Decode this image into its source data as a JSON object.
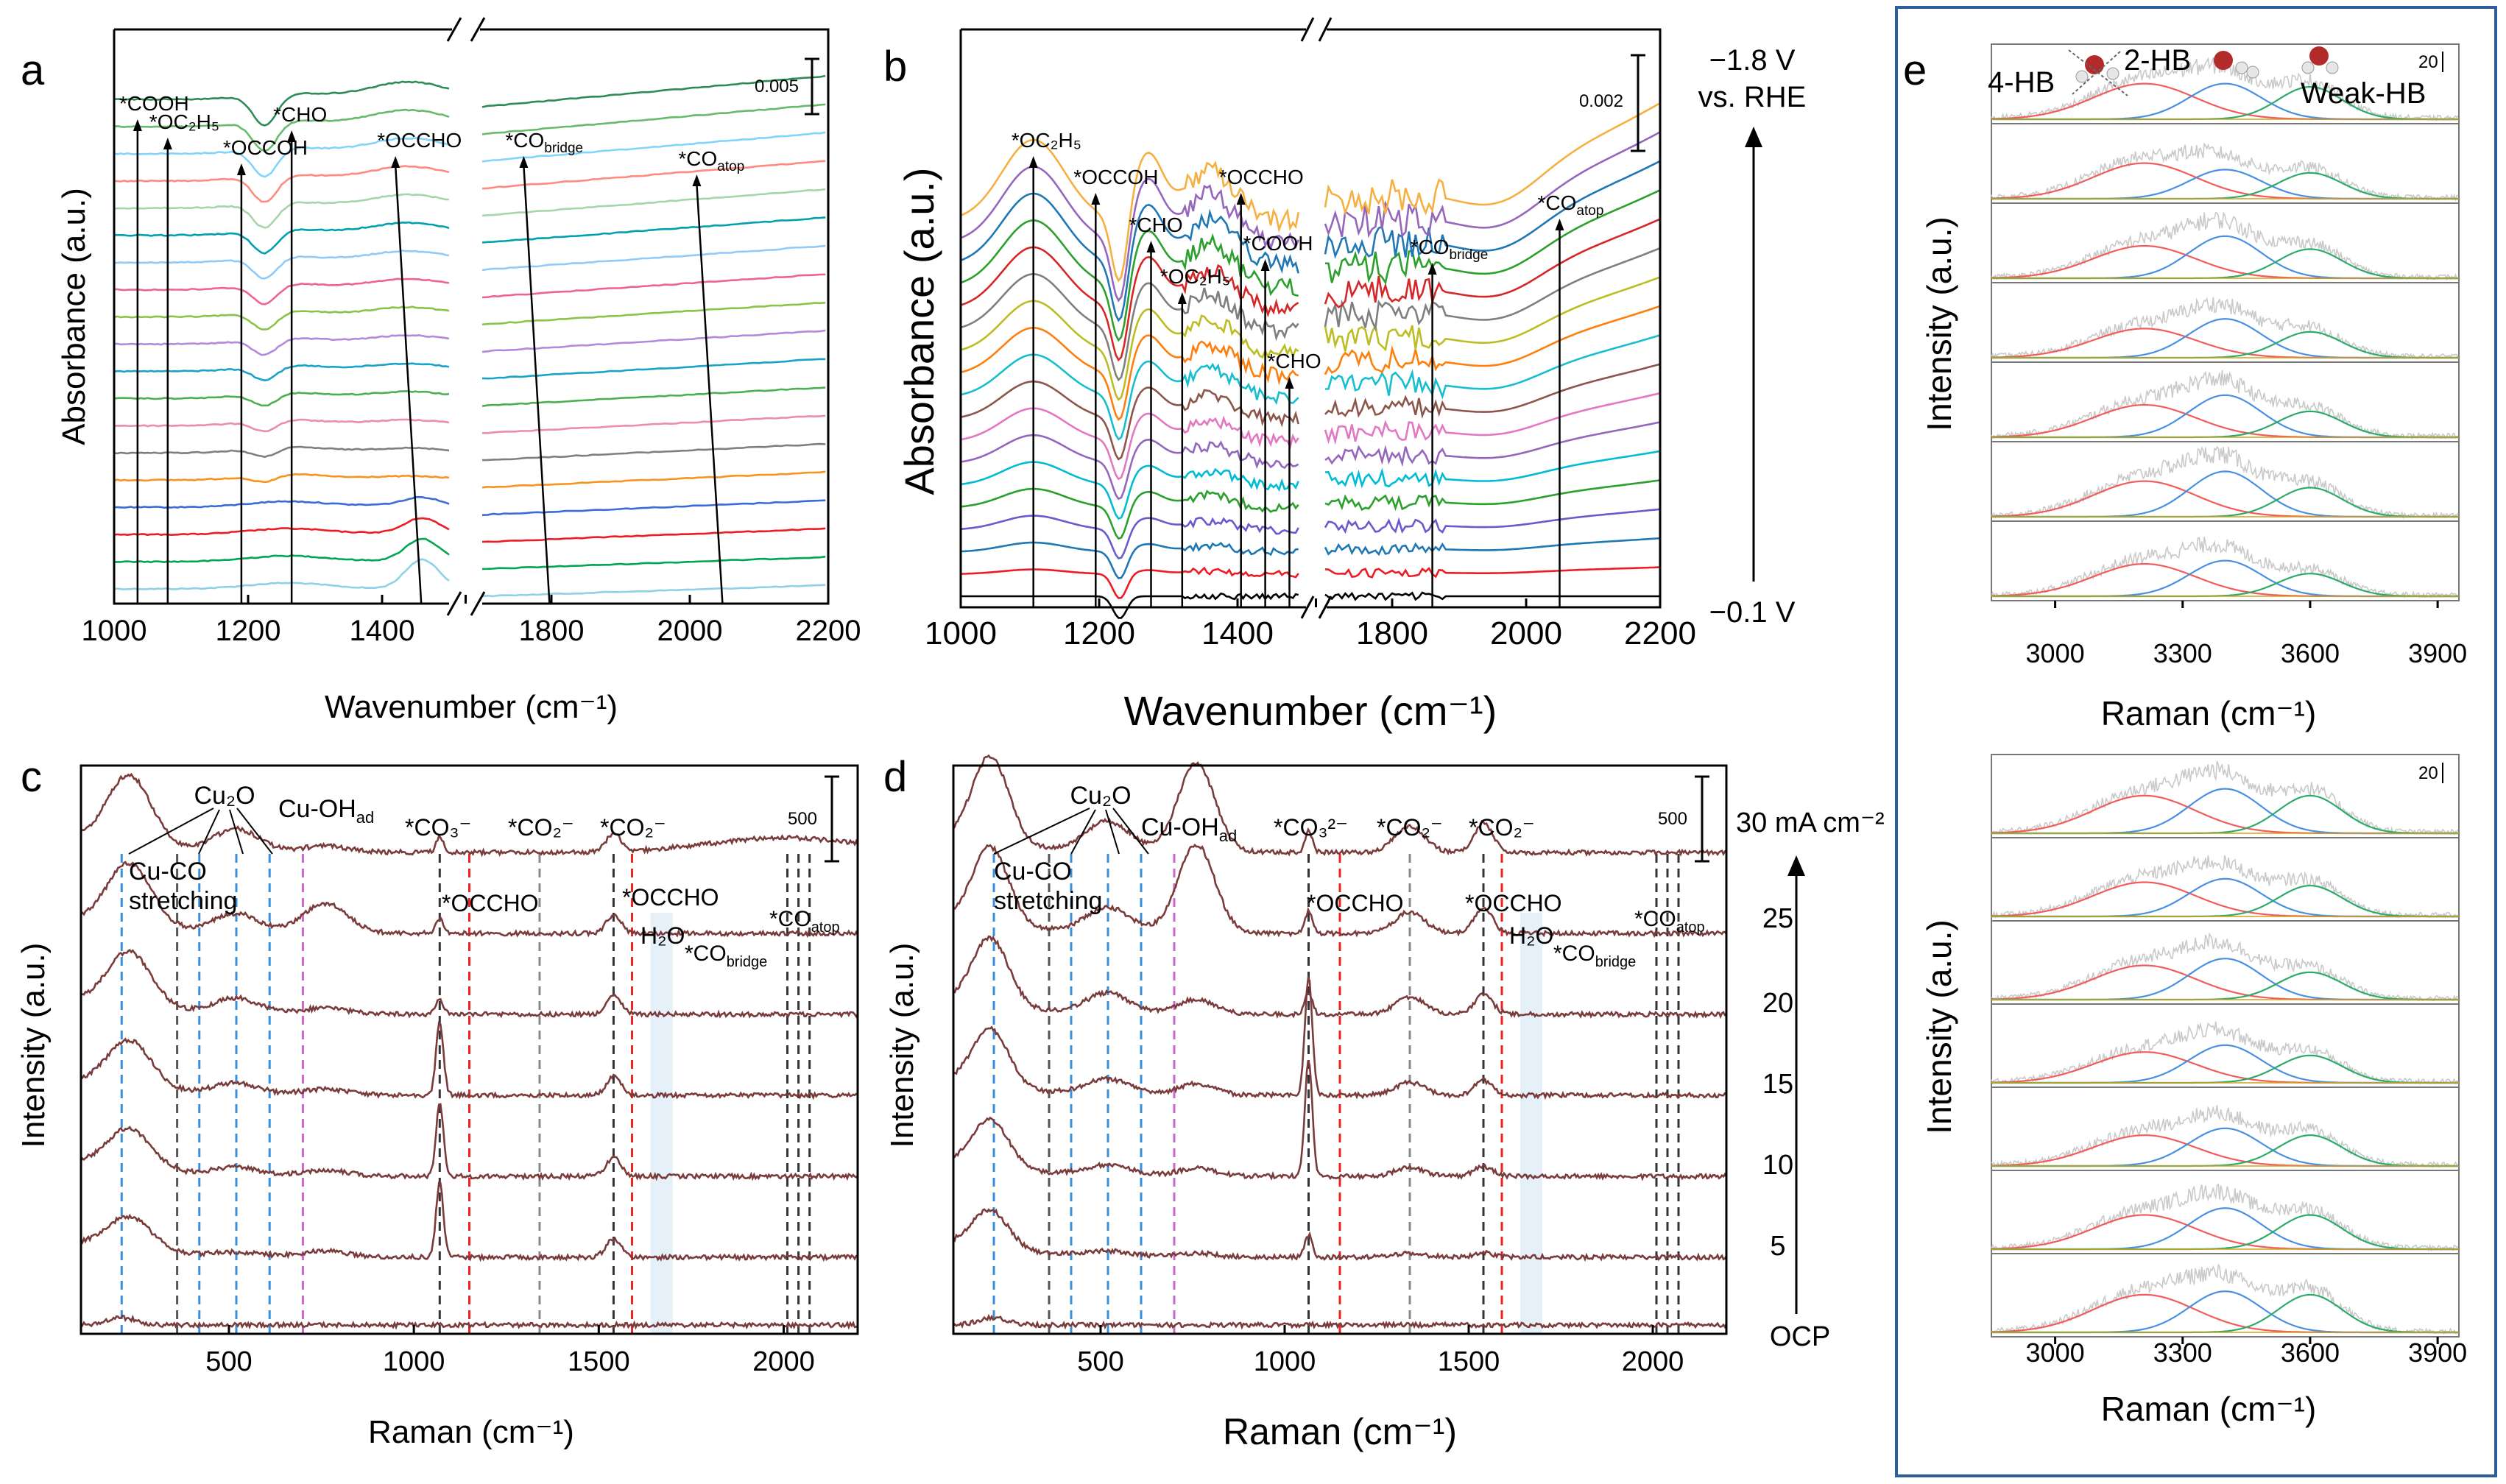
{
  "chart_data": [
    {
      "id": "a",
      "panel_label": "a",
      "type": "line",
      "xlabel": "Wavenumber (cm⁻¹)",
      "ylabel": "Absorbance (a.u.)",
      "x_ticks": [
        1000,
        1200,
        1400,
        1600,
        1800,
        2000,
        2200
      ],
      "x_tick_labels": [
        "1000",
        "1200",
        "1400",
        "",
        "1800",
        "2000",
        "2200"
      ],
      "xlim": [
        1000,
        2200
      ],
      "axis_break": [
        1500,
        1700
      ],
      "scale_bar": "0.005",
      "n_series": 19,
      "series_colors": [
        "#8fd1e6",
        "#00a651",
        "#ed1c24",
        "#3b6bd6",
        "#f7941d",
        "#7f7f7f",
        "#ec8bb4",
        "#4caf50",
        "#1aa2c9",
        "#b388dd",
        "#8bc34a",
        "#f06292",
        "#90caf9",
        "#00a0b0",
        "#a5d6a7",
        "#ff8a80",
        "#81d4fa",
        "#66bb6a",
        "#2e8b57"
      ],
      "annotations": [
        {
          "label": "*COOH",
          "x": 1035
        },
        {
          "label": "*OC₂H₅",
          "x": 1080
        },
        {
          "label": "*OCCOH",
          "x": 1190
        },
        {
          "label": "*CHO",
          "x": 1265
        },
        {
          "label": "*OCCHO",
          "x": 1420
        },
        {
          "label": "*CO",
          "sub": "bridge",
          "x": 1760
        },
        {
          "label": "*CO",
          "sub": "atop",
          "x": 2010
        }
      ]
    },
    {
      "id": "b",
      "panel_label": "b",
      "type": "line",
      "xlabel": "Wavenumber (cm⁻¹)",
      "ylabel": "Absorbance (a.u.)",
      "x_ticks": [
        1000,
        1200,
        1400,
        1600,
        1800,
        2000,
        2200
      ],
      "x_tick_labels": [
        "1000",
        "1200",
        "1400",
        "",
        "1800",
        "2000",
        "2200"
      ],
      "xlim": [
        1000,
        2200
      ],
      "axis_break": [
        1500,
        1700
      ],
      "scale_bar": "0.002",
      "potential_top": "−1.8 V",
      "potential_ref": "vs. RHE",
      "potential_bottom": "−0.1 V",
      "n_series": 18,
      "series_colors": [
        "#000000",
        "#ed1c24",
        "#1f77b4",
        "#6a5acd",
        "#2ca02c",
        "#00bcd4",
        "#9467bd",
        "#e377c2",
        "#8c564b",
        "#17becf",
        "#ff7f0e",
        "#bcbd22",
        "#7f7f7f",
        "#d62728",
        "#2ca02c",
        "#1f77b4",
        "#9467bd",
        "#f5b041"
      ],
      "annotations": [
        {
          "label": "*OC₂H₅",
          "x": 1105
        },
        {
          "label": "*OCCOH",
          "x": 1195
        },
        {
          "label": "*CHO",
          "x": 1275
        },
        {
          "label": "*OC₂H₅",
          "x": 1320
        },
        {
          "label": "*OCCHO",
          "x": 1405
        },
        {
          "label": "*COOH",
          "x": 1440
        },
        {
          "label": "*CHO",
          "x": 1475
        },
        {
          "label": "*CO",
          "sub": "bridge",
          "x": 1860
        },
        {
          "label": "*CO",
          "sub": "atop",
          "x": 2050
        }
      ]
    },
    {
      "id": "c",
      "panel_label": "c",
      "type": "line",
      "xlabel": "Raman (cm⁻¹)",
      "ylabel": "Intensity (a.u.)",
      "x_ticks": [
        500,
        1000,
        1500,
        2000
      ],
      "xlim": [
        100,
        2200
      ],
      "scale_bar": "500",
      "n_series": 7,
      "line_color": "#7a3b3b",
      "peaks": [
        210,
        420,
        520,
        610,
        1070,
        1540,
        2060
      ],
      "guides": [
        {
          "x": 210,
          "color": "#3b8fd9"
        },
        {
          "x": 360,
          "color": "#555555"
        },
        {
          "x": 420,
          "color": "#3b8fd9"
        },
        {
          "x": 520,
          "color": "#3b8fd9"
        },
        {
          "x": 610,
          "color": "#3b8fd9"
        },
        {
          "x": 700,
          "color": "#cc66cc"
        },
        {
          "x": 1070,
          "color": "#333333"
        },
        {
          "x": 1150,
          "color": "#ee2222"
        },
        {
          "x": 1340,
          "color": "#888888"
        },
        {
          "x": 1540,
          "color": "#333333"
        },
        {
          "x": 1590,
          "color": "#ee2222"
        },
        {
          "x": 2010,
          "color": "#333333"
        },
        {
          "x": 2040,
          "color": "#333333"
        },
        {
          "x": 2070,
          "color": "#333333"
        }
      ],
      "water_band": [
        1640,
        1700
      ],
      "labels": {
        "cu2o": "Cu₂O",
        "cuco_1": "Cu-CO",
        "cuco_2": "stretching",
        "cuoh": "Cu-OH",
        "cuoh_sub": "ad",
        "co3": "*CO₃⁻",
        "co2a": "*CO₂⁻",
        "co2b": "*CO₂⁻",
        "occho1": "*OCCHO",
        "occho2": "*OCCHO",
        "h2o": "H₂O",
        "cobridge": "*CO",
        "cobridge_sub": "bridge",
        "coatop": "*CO",
        "coatop_sub": "atop"
      }
    },
    {
      "id": "d",
      "panel_label": "d",
      "type": "line",
      "xlabel": "Raman (cm⁻¹)",
      "ylabel": "Intensity (a.u.)",
      "x_ticks": [
        500,
        1000,
        1500,
        2000
      ],
      "xlim": [
        100,
        2200
      ],
      "scale_bar": "500",
      "current_units": "30 mA cm⁻²",
      "current_ticks": [
        "25",
        "20",
        "15",
        "10",
        "5",
        "OCP"
      ],
      "n_series": 7,
      "line_color": "#7a3b3b",
      "peaks": [
        210,
        520,
        760,
        1065,
        1340,
        1540
      ],
      "guides": [
        {
          "x": 210,
          "color": "#3b8fd9"
        },
        {
          "x": 360,
          "color": "#555555"
        },
        {
          "x": 420,
          "color": "#3b8fd9"
        },
        {
          "x": 520,
          "color": "#3b8fd9"
        },
        {
          "x": 610,
          "color": "#3b8fd9"
        },
        {
          "x": 700,
          "color": "#cc66cc"
        },
        {
          "x": 1065,
          "color": "#333333"
        },
        {
          "x": 1150,
          "color": "#ee2222"
        },
        {
          "x": 1340,
          "color": "#888888"
        },
        {
          "x": 1540,
          "color": "#333333"
        },
        {
          "x": 1590,
          "color": "#ee2222"
        },
        {
          "x": 2010,
          "color": "#333333"
        },
        {
          "x": 2040,
          "color": "#333333"
        },
        {
          "x": 2070,
          "color": "#333333"
        }
      ],
      "water_band": [
        1640,
        1700
      ],
      "labels": {
        "cu2o": "Cu₂O",
        "cuco_1": "Cu-CO",
        "cuco_2": "stretching",
        "cuoh": "Cu-OH",
        "cuoh_sub": "ad",
        "co3": "*CO₃²⁻",
        "co2a": "*CO₂⁻",
        "co2b": "*CO₂⁻",
        "occho1": "*OCCHO",
        "occho2": "*OCCHO",
        "h2o": "H₂O",
        "cobridge": "*CO",
        "cobridge_sub": "bridge",
        "coatop": "*CO",
        "coatop_sub": "atop"
      }
    },
    {
      "id": "e",
      "panel_label": "e",
      "type": "line",
      "xlabel": "Raman (cm⁻¹)",
      "ylabel": "Intensity (a.u.)",
      "x_ticks": [
        3000,
        3300,
        3600,
        3900
      ],
      "xlim": [
        2850,
        3950
      ],
      "scale_bar": "20",
      "legend": [
        "4-HB",
        "2-HB",
        "Weak-HB"
      ],
      "fit_components": [
        {
          "name": "4-HB",
          "center": 3210,
          "width": 120,
          "color": "#f25c5c"
        },
        {
          "name": "2-HB",
          "center": 3400,
          "width": 85,
          "color": "#4a90e2"
        },
        {
          "name": "Weak-HB",
          "center": 3600,
          "width": 75,
          "color": "#2eaa6b"
        }
      ],
      "top_group_amplitudes": [
        [
          0.55,
          0.55,
          0.5
        ],
        [
          0.55,
          0.45,
          0.4
        ],
        [
          0.5,
          0.65,
          0.45
        ],
        [
          0.45,
          0.6,
          0.4
        ],
        [
          0.5,
          0.65,
          0.4
        ],
        [
          0.55,
          0.7,
          0.45
        ],
        [
          0.5,
          0.55,
          0.35
        ]
      ],
      "bottom_group_amplitudes": [
        [
          0.55,
          0.65,
          0.55
        ],
        [
          0.5,
          0.55,
          0.45
        ],
        [
          0.5,
          0.6,
          0.4
        ],
        [
          0.45,
          0.55,
          0.4
        ],
        [
          0.45,
          0.55,
          0.45
        ],
        [
          0.5,
          0.6,
          0.5
        ],
        [
          0.55,
          0.6,
          0.55
        ]
      ]
    }
  ]
}
